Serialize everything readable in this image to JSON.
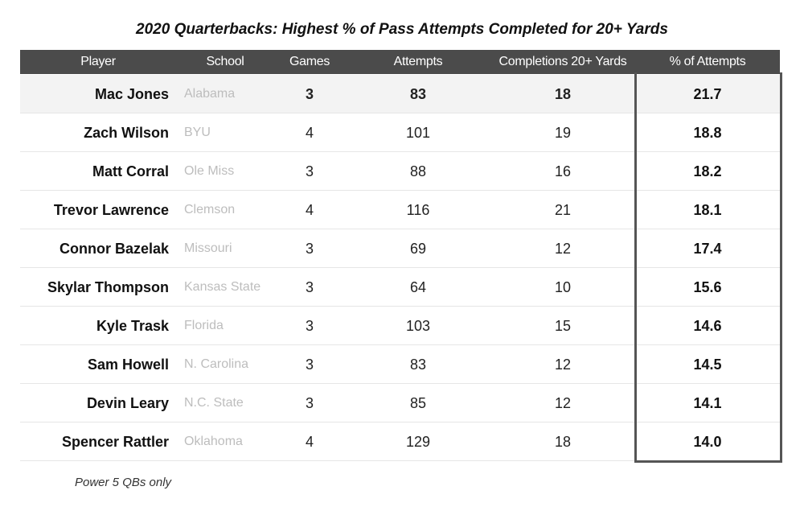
{
  "title": "2020 Quarterbacks: Highest % of Pass Attempts Completed for 20+ Yards",
  "table": {
    "headers": [
      "Player",
      "School",
      "Games",
      "Attempts",
      "Completions 20+ Yards",
      "% of Attempts"
    ],
    "rows": [
      [
        "Mac Jones",
        "Alabama",
        "3",
        "83",
        "18",
        "21.7"
      ],
      [
        "Zach Wilson",
        "BYU",
        "4",
        "101",
        "19",
        "18.8"
      ],
      [
        "Matt Corral",
        "Ole Miss",
        "3",
        "88",
        "16",
        "18.2"
      ],
      [
        "Trevor Lawrence",
        "Clemson",
        "4",
        "116",
        "21",
        "18.1"
      ],
      [
        "Connor Bazelak",
        "Missouri",
        "3",
        "69",
        "12",
        "17.4"
      ],
      [
        "Skylar Thompson",
        "Kansas State",
        "3",
        "64",
        "10",
        "15.6"
      ],
      [
        "Kyle Trask",
        "Florida",
        "3",
        "103",
        "15",
        "14.6"
      ],
      [
        "Sam Howell",
        "N. Carolina",
        "3",
        "83",
        "12",
        "14.5"
      ],
      [
        "Devin Leary",
        "N.C. State",
        "3",
        "85",
        "12",
        "14.1"
      ],
      [
        "Spencer Rattler",
        "Oklahoma",
        "4",
        "129",
        "18",
        "14.0"
      ]
    ]
  },
  "footnote": "Power 5 QBs only"
}
